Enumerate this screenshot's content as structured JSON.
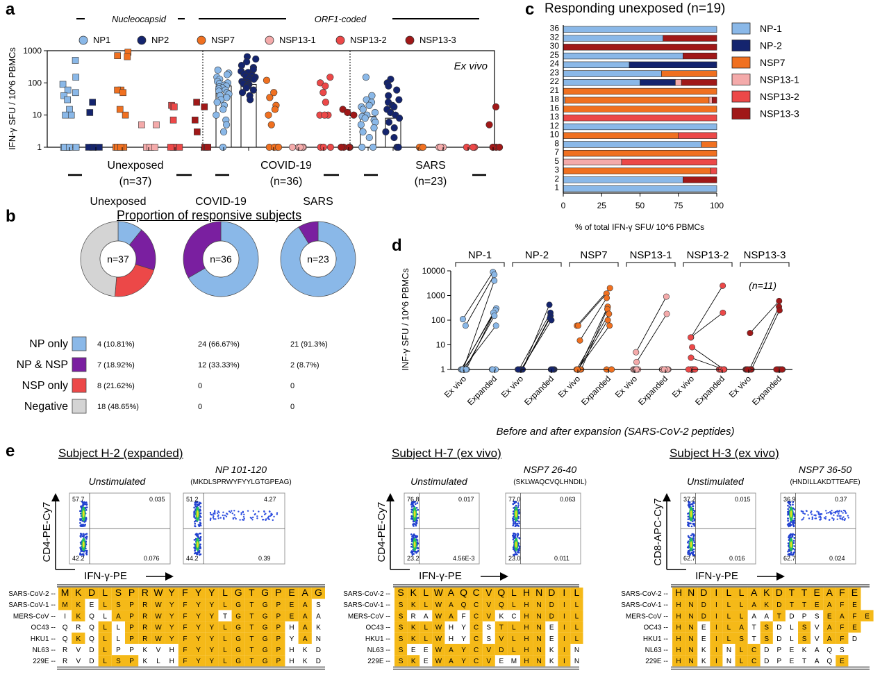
{
  "colors": {
    "NP1": "#8ab8e8",
    "NP2": "#14246e",
    "NSP7": "#f07020",
    "NSP13-1": "#f4aaaa",
    "NSP13-2": "#ec4848",
    "NSP13-3": "#a01818",
    "gray": "#d4d4d4",
    "purple": "#7a1fa0",
    "gold": "#f5b918"
  },
  "panel_letters": [
    "a",
    "b",
    "c",
    "d",
    "e"
  ],
  "chart_data": [
    {
      "panel": "a",
      "type": "scatter",
      "ylabel": "IFN-γ SFU / 10^6 PBMCs",
      "yscale": "log",
      "ylim": [
        1,
        1000
      ],
      "yticks": [
        "1",
        "10",
        "100",
        "1000"
      ],
      "header_groups": [
        "Nucleocapsid",
        "ORF1-coded"
      ],
      "legend": [
        "NP1",
        "NP2",
        "NSP7",
        "NSP13-1",
        "NSP13-2",
        "NSP13-3"
      ],
      "annotation": "Ex vivo",
      "cohorts": [
        {
          "name": "Unexposed",
          "n": "(n=37)",
          "marker": "square",
          "bars": false,
          "values": {
            "NP1": [
              500,
              150,
              90,
              60,
              50,
              40,
              30,
              15,
              10,
              10,
              1,
              1,
              1,
              1,
              1
            ],
            "NP2": [
              25,
              12,
              1,
              1,
              1,
              1
            ],
            "NSP7": [
              900,
              700,
              650,
              60,
              60,
              50,
              15,
              10,
              1,
              1,
              1,
              1
            ],
            "NSP13-1": [
              5,
              5,
              1,
              1,
              1,
              1
            ],
            "NSP13-2": [
              20,
              18,
              18,
              7,
              1,
              1,
              1,
              1
            ],
            "NSP13-3": [
              25,
              18,
              7,
              3,
              1,
              1,
              1
            ]
          }
        },
        {
          "name": "COVID-19",
          "n": "(n=36)",
          "marker": "circle",
          "bars": true,
          "bar_heights": {
            "NP1": 80,
            "NP2": 90,
            "NSP7": 1,
            "NSP13-1": 1,
            "NSP13-2": 1,
            "NSP13-3": 1
          },
          "values": {
            "NP1": [
              250,
              200,
              180,
              150,
              130,
              110,
              100,
              95,
              85,
              80,
              75,
              70,
              65,
              60,
              55,
              50,
              45,
              40,
              35,
              30,
              25,
              20,
              15,
              10,
              7,
              5,
              3,
              1
            ],
            "NP2": [
              650,
              550,
              450,
              350,
              300,
              260,
              230,
              210,
              190,
              170,
              160,
              150,
              140,
              130,
              120,
              110,
              100,
              95,
              90,
              85,
              80,
              75,
              70,
              60,
              50,
              40,
              30
            ],
            "NSP7": [
              120,
              50,
              35,
              20,
              15,
              10,
              5,
              1,
              1,
              1,
              1
            ],
            "NSP13-1": [
              1,
              1,
              1,
              1,
              1,
              1
            ],
            "NSP13-2": [
              150,
              100,
              80,
              50,
              25,
              10,
              10,
              10,
              1,
              1,
              1
            ],
            "NSP13-3": [
              15,
              12,
              10,
              1,
              1,
              1,
              1
            ]
          }
        },
        {
          "name": "SARS",
          "n": "(n=23)",
          "marker": "circle",
          "bars": true,
          "bar_heights": {
            "NP1": 9,
            "NP2": 8,
            "NSP7": 1,
            "NSP13-1": 1,
            "NSP13-2": 1,
            "NSP13-3": 1
          },
          "values": {
            "NP1": [
              150,
              40,
              30,
              25,
              20,
              18,
              15,
              12,
              10,
              9,
              8,
              7,
              6,
              5,
              4,
              3,
              2,
              1,
              1
            ],
            "NP2": [
              130,
              100,
              80,
              60,
              40,
              30,
              25,
              20,
              18,
              15,
              12,
              10,
              8,
              6,
              4,
              3,
              2,
              1,
              1
            ],
            "NSP7": [
              1,
              1,
              1
            ],
            "NSP13-1": [
              1,
              1,
              1
            ],
            "NSP13-2": [
              1,
              1,
              1
            ],
            "NSP13-3": [
              18,
              5,
              1,
              1,
              1
            ]
          }
        }
      ]
    },
    {
      "panel": "b",
      "type": "pie",
      "title": "Proportion of responsive subjects",
      "categories": [
        "NP only",
        "NP & NSP",
        "NSP only",
        "Negative"
      ],
      "pies": [
        {
          "name": "Unexposed",
          "center": "n=37",
          "values": [
            4,
            7,
            8,
            18
          ],
          "labels": [
            "4 (10.81%)",
            "7 (18.92%)",
            "8 (21.62%)",
            "18 (48.65%)"
          ]
        },
        {
          "name": "COVID-19",
          "center": "n=36",
          "values": [
            24,
            12,
            0,
            0
          ],
          "labels": [
            "24 (66.67%)",
            "12 (33.33%)",
            "0",
            "0"
          ]
        },
        {
          "name": "SARS",
          "center": "n=23",
          "values": [
            21,
            2,
            0,
            0
          ],
          "labels": [
            "21 (91.3%)",
            "2 (8.7%)",
            "0",
            "0"
          ]
        }
      ]
    },
    {
      "panel": "c",
      "type": "bar",
      "orientation": "horizontal",
      "stacked": true,
      "title": "Responding unexposed (n=19)",
      "xlabel": "% of total IFN-γ SFU/ 10^6 PBMCs",
      "xlim": [
        0,
        100
      ],
      "xticks": [
        "0",
        "25",
        "50",
        "75",
        "100"
      ],
      "legend": [
        "NP-1",
        "NP-2",
        "NSP7",
        "NSP13-1",
        "NSP13-2",
        "NSP13-3"
      ],
      "categories": [
        "36",
        "32",
        "30",
        "25",
        "24",
        "23",
        "22",
        "21",
        "18",
        "16",
        "13",
        "12",
        "10",
        "8",
        "7",
        "5",
        "3",
        "2",
        "1"
      ],
      "series": [
        {
          "name": "NP-1",
          "values": [
            100,
            65,
            0,
            78,
            43,
            64,
            50,
            0,
            1,
            0,
            0,
            100,
            0,
            90,
            0,
            0,
            0,
            78,
            100
          ]
        },
        {
          "name": "NP-2",
          "values": [
            0,
            0,
            0,
            0,
            57,
            0,
            23,
            0,
            0,
            0,
            0,
            0,
            0,
            0,
            0,
            0,
            0,
            0,
            0
          ]
        },
        {
          "name": "NSP7",
          "values": [
            0,
            0,
            0,
            0,
            0,
            36,
            0,
            100,
            94,
            100,
            0,
            0,
            75,
            10,
            100,
            0,
            96,
            0,
            0
          ]
        },
        {
          "name": "NSP13-1",
          "values": [
            0,
            0,
            0,
            0,
            0,
            0,
            4,
            0,
            2,
            0,
            0,
            0,
            0,
            0,
            0,
            38,
            0,
            0,
            0
          ]
        },
        {
          "name": "NSP13-2",
          "values": [
            0,
            0,
            0,
            0,
            0,
            0,
            0,
            0,
            0,
            0,
            100,
            0,
            25,
            0,
            0,
            62,
            4,
            0,
            0
          ]
        },
        {
          "name": "NSP13-3",
          "values": [
            0,
            35,
            100,
            22,
            0,
            0,
            23,
            0,
            3,
            0,
            0,
            0,
            0,
            0,
            0,
            0,
            0,
            22,
            0
          ]
        }
      ]
    },
    {
      "panel": "d",
      "type": "line",
      "ylabel": "INF-γ SFU / 10^6 PBMCs",
      "xlabel": "Before and after expansion (SARS-CoV-2 peptides)",
      "yscale": "log",
      "ylim": [
        1,
        10000
      ],
      "yticks": [
        "1",
        "10",
        "100",
        "1000",
        "10000"
      ],
      "annotation": "(n=11)",
      "x": [
        "Ex vivo",
        "Expanded"
      ],
      "groups": [
        {
          "name": "NP-1",
          "pairs": [
            [
              110,
              9000
            ],
            [
              60,
              7000
            ],
            [
              1,
              4000
            ],
            [
              1,
              300
            ],
            [
              1,
              250
            ],
            [
              1,
              200
            ],
            [
              1,
              150
            ],
            [
              1,
              60
            ],
            [
              1,
              1
            ],
            [
              1,
              1
            ],
            [
              1,
              1
            ]
          ]
        },
        {
          "name": "NP-2",
          "pairs": [
            [
              1,
              420
            ],
            [
              1,
              200
            ],
            [
              1,
              150
            ],
            [
              1,
              120
            ],
            [
              1,
              100
            ],
            [
              1,
              1
            ],
            [
              1,
              1
            ],
            [
              1,
              1
            ],
            [
              1,
              1
            ],
            [
              1,
              1
            ],
            [
              1,
              1
            ]
          ]
        },
        {
          "name": "NSP7",
          "pairs": [
            [
              60,
              2000
            ],
            [
              60,
              1200
            ],
            [
              15,
              800
            ],
            [
              1,
              350
            ],
            [
              1,
              280
            ],
            [
              1,
              180
            ],
            [
              1,
              100
            ],
            [
              1,
              60
            ],
            [
              1,
              1
            ],
            [
              1,
              1
            ],
            [
              1,
              1
            ]
          ]
        },
        {
          "name": "NSP13-1",
          "pairs": [
            [
              5,
              900
            ],
            [
              2,
              180
            ],
            [
              1,
              1
            ],
            [
              1,
              1
            ],
            [
              1,
              1
            ],
            [
              1,
              1
            ],
            [
              1,
              1
            ],
            [
              1,
              1
            ],
            [
              1,
              1
            ],
            [
              1,
              1
            ],
            [
              1,
              1
            ]
          ]
        },
        {
          "name": "NSP13-2",
          "pairs": [
            [
              20,
              2500
            ],
            [
              20,
              200
            ],
            [
              8,
              1
            ],
            [
              3,
              1
            ],
            [
              1,
              1
            ],
            [
              1,
              1
            ],
            [
              1,
              1
            ],
            [
              1,
              1
            ],
            [
              1,
              1
            ],
            [
              1,
              1
            ],
            [
              1,
              1
            ]
          ]
        },
        {
          "name": "NSP13-3",
          "pairs": [
            [
              30,
              600
            ],
            [
              1,
              350
            ],
            [
              1,
              250
            ],
            [
              1,
              1
            ],
            [
              1,
              1
            ],
            [
              1,
              1
            ],
            [
              1,
              1
            ],
            [
              1,
              1
            ],
            [
              1,
              1
            ],
            [
              1,
              1
            ],
            [
              1,
              1
            ]
          ]
        }
      ]
    }
  ],
  "panel_e": {
    "y_axis_labels": [
      "CD4-PE-Cy7",
      "CD4-PE-Cy7",
      "CD8-APC-Cy7"
    ],
    "x_axis_label": "IFN-γ-PE",
    "unstim_label": "Unstimulated",
    "subjects": [
      {
        "title": "Subject H-2 (expanded)",
        "peptide": "NP 101-120",
        "sequence": "(MKDLSPRWYFYYLGTGPEAG)",
        "unstim_q": [
          "57.7",
          "0.035",
          "42.2",
          "0.076"
        ],
        "stim_q": [
          "51.2",
          "4.27",
          "44.2",
          "0.39"
        ],
        "align": [
          {
            "name": "SARS-CoV-2 --",
            "seq": "MKDLSPRWYFYYLGTGPEAG",
            "hl": "11111111111111111111"
          },
          {
            "name": "SARS-CoV-1 --",
            "seq": "MKELSPRWYFYYLGTGPEAS",
            "hl": "11011111111111111110"
          },
          {
            "name": "MERS-CoV --",
            "seq": "IKQLAPRWYFYYTGTGPEAA",
            "hl": "01001111111101111110"
          },
          {
            "name": "OC43 --",
            "seq": "QRQLLPRWYFYYLGTGPHAK",
            "hl": "00010111111111111010"
          },
          {
            "name": "HKU1 --",
            "seq": "QKQLLPRWYFYYLGTGPYAN",
            "hl": "01010111111111111010"
          },
          {
            "name": "NL63 --",
            "seq": "RVDLPPKVHFYYLGTGPHKD",
            "hl": "00010000011111111000"
          },
          {
            "name": "229E --",
            "seq": "RVDLSPKLHFYYLGTGPHKD",
            "hl": "00011100011111111000"
          }
        ]
      },
      {
        "title": "Subject H-7 (ex vivo)",
        "peptide": "NSP7 26-40",
        "sequence": "(SKLWAQCVQLHNDIL)",
        "unstim_q": [
          "76.8",
          "0.017",
          "23.2",
          "4.56E-3"
        ],
        "stim_q": [
          "77.0",
          "0.063",
          "23.0",
          "0.011"
        ],
        "align": [
          {
            "name": "SARS-CoV-2 --",
            "seq": "SKLWAQCVQLHNDIL",
            "hl": "111111111111111"
          },
          {
            "name": "SARS-CoV-1 --",
            "seq": "SKLWAQCVQLHNDIL",
            "hl": "111111111111111"
          },
          {
            "name": "MERS-CoV --",
            "seq": "SRAWAFCVKCHNDIL",
            "hl": "100110110011111"
          },
          {
            "name": "OC43 --",
            "seq": "SKLWHYCSTLHNEIL",
            "hl": "111100101111011"
          },
          {
            "name": "HKU1 --",
            "seq": "SKLWHYCSVLHNEIL",
            "hl": "111100101111011"
          },
          {
            "name": "NL63 --",
            "seq": "SEEWAYCVDLHNKIN",
            "hl": "100111111111010"
          },
          {
            "name": "229E --",
            "seq": "SKEWAYCVEMHNKIN",
            "hl": "110111110011010"
          }
        ]
      },
      {
        "title": "Subject H-3 (ex vivo)",
        "peptide": "NSP7 36-50",
        "sequence": "(HNDILLAKDTTEAFE)",
        "unstim_q": [
          "37.2",
          "0.015",
          "62.7",
          "0.016"
        ],
        "stim_q": [
          "36.9",
          "0.37",
          "62.7",
          "0.024"
        ],
        "align": [
          {
            "name": "SARS-CoV-2 --",
            "seq": "HNDILLAKDTTEAFE",
            "hl": "111111111111111"
          },
          {
            "name": "SARS-CoV-1 --",
            "seq": "HNDILLAKDTTEAFE",
            "hl": "111111111111111"
          },
          {
            "name": "MERS-CoV --",
            "seq": "HNDILLAATDPSEAFE",
            "hl": "1111110010001111"
          },
          {
            "name": "OC43 --",
            "seq": "HNEILATSDLSVAFE",
            "hl": "110111010010111"
          },
          {
            "name": "HKU1 --",
            "seq": "HNEILSTSDLSVAFD",
            "hl": "110111010010110"
          },
          {
            "name": "NL63 --",
            "seq": "HNKINLCDPEKAQS",
            "hl": "11010110000000"
          },
          {
            "name": "229E --",
            "seq": "HNKINLCDPETAQE",
            "hl": "11010110000001"
          }
        ]
      }
    ]
  }
}
